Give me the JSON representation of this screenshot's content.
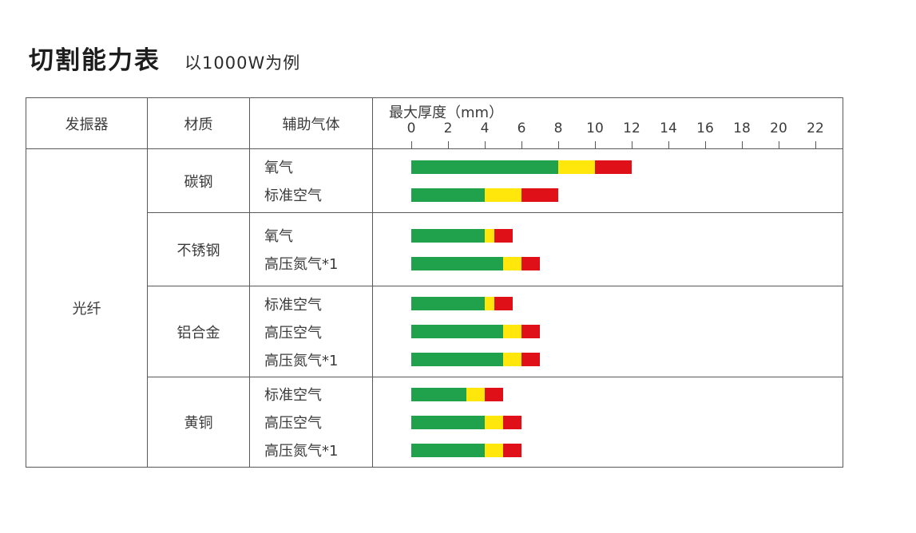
{
  "page": {
    "title": "切割能力表",
    "subtitle": "以1000W为例"
  },
  "table_headers": {
    "oscillator": "发振器",
    "material": "材质",
    "gas": "辅助气体",
    "axis_title": "最大厚度（mm）"
  },
  "oscillator": "光纤",
  "chart_data": {
    "type": "bar",
    "title": "切割能力表",
    "subtitle": "以1000W为例",
    "xlabel": "最大厚度（mm）",
    "unit": "mm",
    "xlim": [
      0,
      22
    ],
    "x_ticks": [
      0,
      2,
      4,
      6,
      8,
      10,
      12,
      14,
      16,
      18,
      20,
      22
    ],
    "oscillator": "光纤",
    "segment_colors": {
      "green": "#1fa24b",
      "yellow": "#ffe60b",
      "red": "#e01018"
    },
    "groups": [
      {
        "material": "碳钢",
        "rows": [
          {
            "gas": "氧气",
            "green_end": 8,
            "yellow_end": 10,
            "red_end": 12
          },
          {
            "gas": "标准空气",
            "green_end": 4,
            "yellow_end": 6,
            "red_end": 8
          }
        ]
      },
      {
        "material": "不锈钢",
        "rows": [
          {
            "gas": "氧气",
            "green_end": 4,
            "yellow_end": 4.5,
            "red_end": 5.5
          },
          {
            "gas": "高压氮气*1",
            "green_end": 5,
            "yellow_end": 6,
            "red_end": 7
          }
        ]
      },
      {
        "material": "铝合金",
        "rows": [
          {
            "gas": "标准空气",
            "green_end": 4,
            "yellow_end": 4.5,
            "red_end": 5.5
          },
          {
            "gas": "高压空气",
            "green_end": 5,
            "yellow_end": 6,
            "red_end": 7
          },
          {
            "gas": "高压氮气*1",
            "green_end": 5,
            "yellow_end": 6,
            "red_end": 7
          }
        ]
      },
      {
        "material": "黄铜",
        "rows": [
          {
            "gas": "标准空气",
            "green_end": 3,
            "yellow_end": 4,
            "red_end": 5
          },
          {
            "gas": "高压空气",
            "green_end": 4,
            "yellow_end": 5,
            "red_end": 6
          },
          {
            "gas": "高压氮气*1",
            "green_end": 4,
            "yellow_end": 5,
            "red_end": 6
          }
        ]
      }
    ]
  }
}
